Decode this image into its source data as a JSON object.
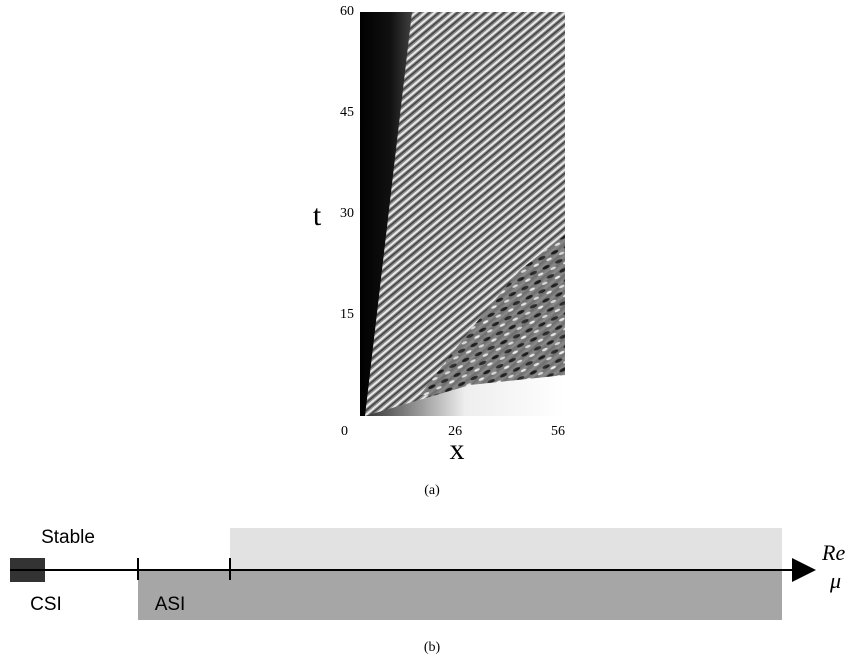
{
  "panel_a": {
    "xlabel": "x",
    "ylabel": "t",
    "xlim": [
      0,
      56
    ],
    "ylim": [
      0,
      60
    ],
    "xticks": [
      0,
      26,
      56
    ],
    "yticks": [
      15,
      30,
      45,
      60
    ],
    "caption": "(a)"
  },
  "panel_b": {
    "labels": {
      "stable": "Stable",
      "csi": "CSI",
      "asi": "ASI",
      "re": "Re",
      "mu": "μ"
    },
    "caption": "(b)"
  }
}
